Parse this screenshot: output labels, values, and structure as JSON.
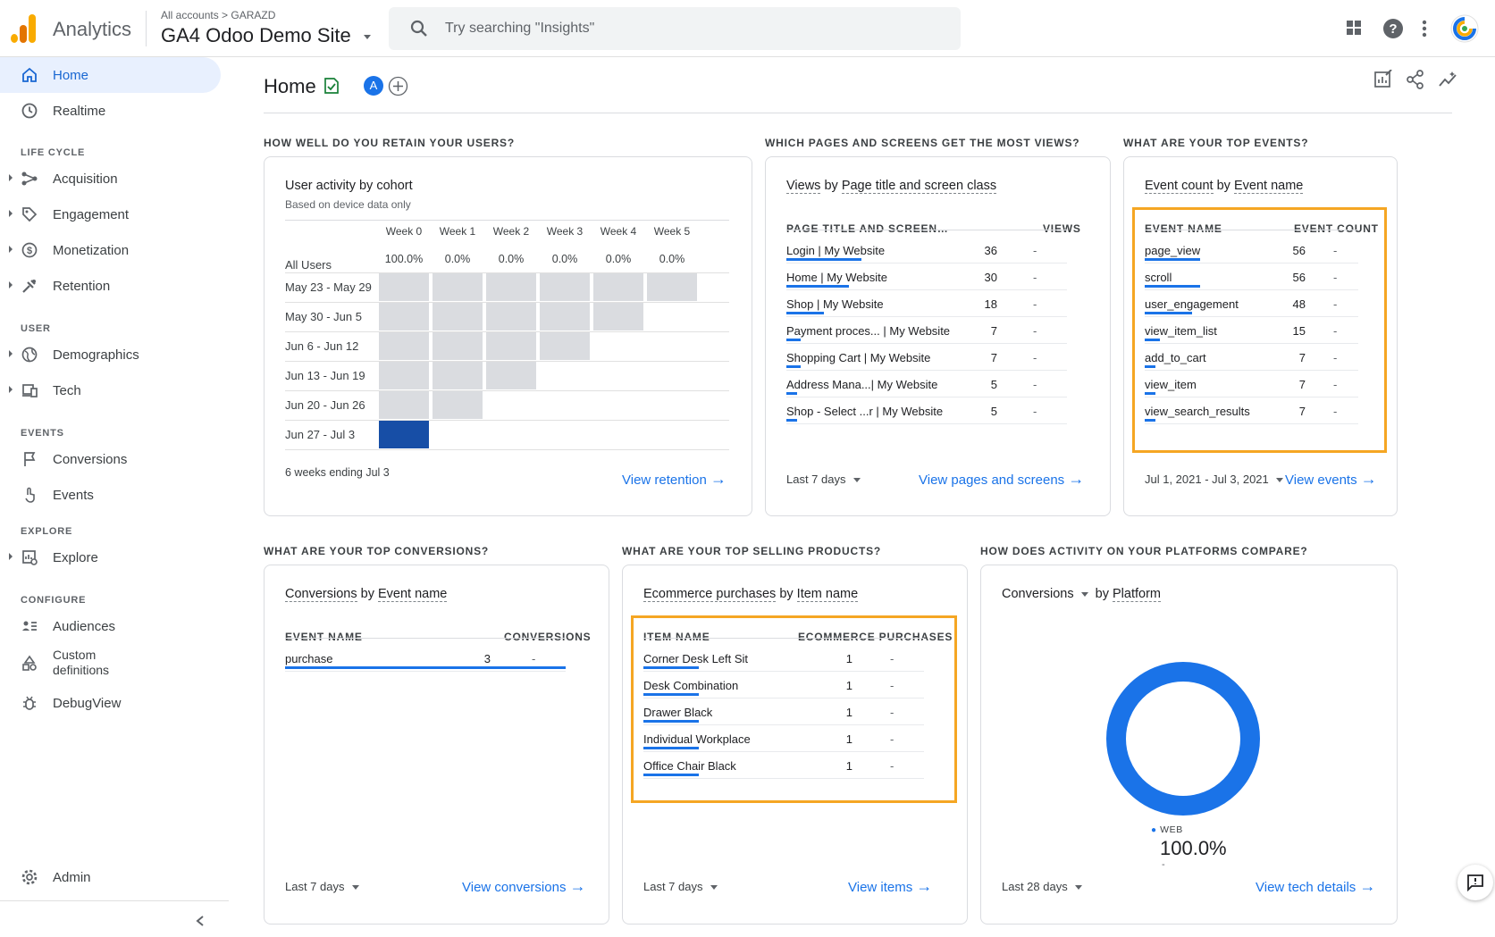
{
  "topbar": {
    "brand": "Analytics",
    "breadcrumb": "All accounts  >  GARAZD",
    "property": "GA4 Odoo Demo Site",
    "search_placeholder": "Try searching \"Insights\""
  },
  "sidebar": {
    "home": "Home",
    "realtime": "Realtime",
    "sec_lifecycle": "LIFE CYCLE",
    "acquisition": "Acquisition",
    "engagement": "Engagement",
    "monetization": "Monetization",
    "retention": "Retention",
    "sec_user": "USER",
    "demographics": "Demographics",
    "tech": "Tech",
    "sec_events": "EVENTS",
    "conversions": "Conversions",
    "events": "Events",
    "sec_explore": "EXPLORE",
    "explore": "Explore",
    "sec_configure": "CONFIGURE",
    "audiences": "Audiences",
    "custom_def_1": "Custom",
    "custom_def_2": "definitions",
    "debugview": "DebugView",
    "admin": "Admin"
  },
  "page": {
    "title": "Home",
    "avatar_letter": "A"
  },
  "questions": {
    "retain": "HOW WELL DO YOU RETAIN YOUR USERS?",
    "pages": "WHICH PAGES AND SCREENS GET THE MOST VIEWS?",
    "events": "WHAT ARE YOUR TOP EVENTS?",
    "conversions": "WHAT ARE YOUR TOP CONVERSIONS?",
    "products": "WHAT ARE YOUR TOP SELLING PRODUCTS?",
    "platforms": "HOW DOES ACTIVITY ON YOUR PLATFORMS COMPARE?"
  },
  "cohort": {
    "title": "User activity by cohort",
    "subtitle": "Based on device data only",
    "weeks": [
      "Week 0",
      "Week 1",
      "Week 2",
      "Week 3",
      "Week 4",
      "Week 5"
    ],
    "all_users_label": "All Users",
    "all_users_values": [
      "100.0%",
      "0.0%",
      "0.0%",
      "0.0%",
      "0.0%",
      "0.0%"
    ],
    "rows": [
      {
        "label": "May 23 - May 29",
        "cells": 6
      },
      {
        "label": "May 30 - Jun 5",
        "cells": 5
      },
      {
        "label": "Jun 6 - Jun 12",
        "cells": 4
      },
      {
        "label": "Jun 13 - Jun 19",
        "cells": 3
      },
      {
        "label": "Jun 20 - Jun 26",
        "cells": 2
      },
      {
        "label": "Jun 27 - Jul 3",
        "cells": 1
      }
    ],
    "footer": "6 weeks ending Jul 3",
    "link": "View retention"
  },
  "pages_card": {
    "title_a": "Views",
    "title_b": "by",
    "title_c": "Page title and screen class",
    "col_name": "PAGE TITLE AND SCREEN…",
    "col_value": "VIEWS",
    "rows": [
      {
        "name": "Login | My Website",
        "value": "36",
        "delta": "-",
        "bar": 1.0
      },
      {
        "name": "Home | My Website",
        "value": "30",
        "delta": "-",
        "bar": 0.83
      },
      {
        "name": "Shop | My Website",
        "value": "18",
        "delta": "-",
        "bar": 0.5
      },
      {
        "name": "Payment proces... | My Website",
        "value": "7",
        "delta": "-",
        "bar": 0.19
      },
      {
        "name": "Shopping Cart | My Website",
        "value": "7",
        "delta": "-",
        "bar": 0.19
      },
      {
        "name": "Address Mana...| My Website",
        "value": "5",
        "delta": "-",
        "bar": 0.14
      },
      {
        "name": "Shop - Select ...r | My Website",
        "value": "5",
        "delta": "-",
        "bar": 0.14
      }
    ],
    "range": "Last 7 days",
    "link": "View pages and screens"
  },
  "events_card": {
    "title_a": "Event count",
    "title_b": "by",
    "title_c": "Event name",
    "col_name": "EVENT NAME",
    "col_value": "EVENT COUNT",
    "rows": [
      {
        "name": "page_view",
        "value": "56",
        "delta": "-",
        "bar": 1.0
      },
      {
        "name": "scroll",
        "value": "56",
        "delta": "-",
        "bar": 1.0
      },
      {
        "name": "user_engagement",
        "value": "48",
        "delta": "-",
        "bar": 0.86
      },
      {
        "name": "view_item_list",
        "value": "15",
        "delta": "-",
        "bar": 0.27
      },
      {
        "name": "add_to_cart",
        "value": "7",
        "delta": "-",
        "bar": 0.13
      },
      {
        "name": "view_item",
        "value": "7",
        "delta": "-",
        "bar": 0.13
      },
      {
        "name": "view_search_results",
        "value": "7",
        "delta": "-",
        "bar": 0.13
      }
    ],
    "range": "Jul 1, 2021 - Jul 3, 2021",
    "link": "View events"
  },
  "conversions_card": {
    "title_a": "Conversions",
    "title_b": "by",
    "title_c": "Event name",
    "col_name": "EVENT NAME",
    "col_value": "CONVERSIONS",
    "rows": [
      {
        "name": "purchase",
        "value": "3",
        "delta": "-",
        "bar": 1.0
      }
    ],
    "range": "Last 7 days",
    "link": "View conversions"
  },
  "products_card": {
    "title_a": "Ecommerce purchases",
    "title_b": "by",
    "title_c": "Item name",
    "col_name": "ITEM NAME",
    "col_value": "ECOMMERCE PURCHASES",
    "rows": [
      {
        "name": "Corner Desk Left Sit",
        "value": "1",
        "delta": "-",
        "bar": 1.0
      },
      {
        "name": "Desk Combination",
        "value": "1",
        "delta": "-",
        "bar": 1.0
      },
      {
        "name": "Drawer Black",
        "value": "1",
        "delta": "-",
        "bar": 1.0
      },
      {
        "name": "Individual Workplace",
        "value": "1",
        "delta": "-",
        "bar": 1.0
      },
      {
        "name": "Office Chair Black",
        "value": "1",
        "delta": "-",
        "bar": 1.0
      }
    ],
    "range": "Last 7 days",
    "link": "View items"
  },
  "platform_card": {
    "metric": "Conversions",
    "title_b": "by",
    "title_c": "Platform",
    "legend_label": "WEB",
    "legend_value": "100.0%",
    "legend_delta": "-",
    "range": "Last 28 days",
    "link": "View tech details"
  },
  "chart_data": {
    "type": "pie",
    "categories": [
      "WEB"
    ],
    "values": [
      100.0
    ]
  },
  "colors": {
    "accent": "#1a73e8",
    "highlight": "#f5a623",
    "cohort_filled": "#dadce0",
    "cohort_active": "#174ea6"
  }
}
